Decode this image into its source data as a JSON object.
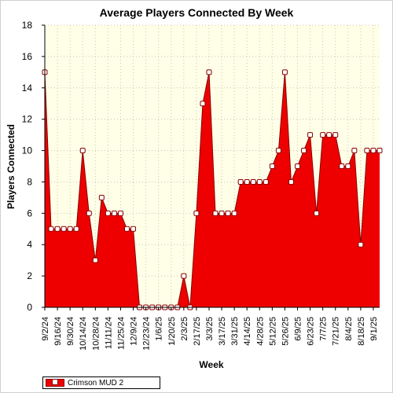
{
  "chart_data": {
    "type": "area",
    "title": "Average Players Connected By Week",
    "xlabel": "Week",
    "ylabel": "Players Connected",
    "ylim": [
      0,
      18
    ],
    "yticks": [
      0,
      2,
      4,
      6,
      8,
      10,
      12,
      14,
      16,
      18
    ],
    "grid": true,
    "legend_position": "bottom-left",
    "colors": {
      "fill": "#ee0000",
      "line": "#880000",
      "plot_background": "#ffffe8",
      "grid": "#c8c8b4"
    },
    "tick_labels": [
      "9/2/24",
      "9/16/24",
      "9/30/24",
      "10/14/24",
      "10/28/24",
      "11/11/24",
      "11/25/24",
      "12/9/24",
      "12/23/24",
      "1/6/25",
      "1/20/25",
      "2/3/25",
      "2/17/25",
      "3/3/25",
      "3/17/25",
      "3/31/25",
      "4/14/25",
      "4/28/25",
      "5/12/25",
      "5/26/25",
      "6/9/25",
      "6/23/25",
      "7/7/25",
      "7/21/25",
      "8/4/25",
      "8/18/25",
      "9/1/25"
    ],
    "x": [
      "9/2/24",
      "9/9/24",
      "9/16/24",
      "9/23/24",
      "9/30/24",
      "10/7/24",
      "10/14/24",
      "10/21/24",
      "10/28/24",
      "11/4/24",
      "11/11/24",
      "11/18/24",
      "11/25/24",
      "12/2/24",
      "12/9/24",
      "12/16/24",
      "12/23/24",
      "12/30/24",
      "1/6/25",
      "1/13/25",
      "1/20/25",
      "1/27/25",
      "2/3/25",
      "2/10/25",
      "2/17/25",
      "2/24/25",
      "3/3/25",
      "3/10/25",
      "3/17/25",
      "3/24/25",
      "3/31/25",
      "4/7/25",
      "4/14/25",
      "4/21/25",
      "4/28/25",
      "5/5/25",
      "5/12/25",
      "5/19/25",
      "5/26/25",
      "6/2/25",
      "6/9/25",
      "6/16/25",
      "6/23/25",
      "6/30/25",
      "7/7/25",
      "7/14/25",
      "7/21/25",
      "7/28/25",
      "8/4/25",
      "8/11/25",
      "8/18/25",
      "8/25/25",
      "9/1/25",
      "9/8/25"
    ],
    "series": [
      {
        "name": "Crimson MUD 2",
        "values": [
          15,
          5,
          5,
          5,
          5,
          5,
          10,
          6,
          3,
          7,
          6,
          6,
          6,
          5,
          5,
          0,
          0,
          0,
          0,
          0,
          0,
          0,
          2,
          0,
          6,
          13,
          15,
          6,
          6,
          6,
          6,
          8,
          8,
          8,
          8,
          8,
          9,
          10,
          15,
          8,
          9,
          10,
          11,
          6,
          11,
          11,
          11,
          9,
          9,
          10,
          4,
          10,
          10,
          10
        ]
      }
    ]
  }
}
